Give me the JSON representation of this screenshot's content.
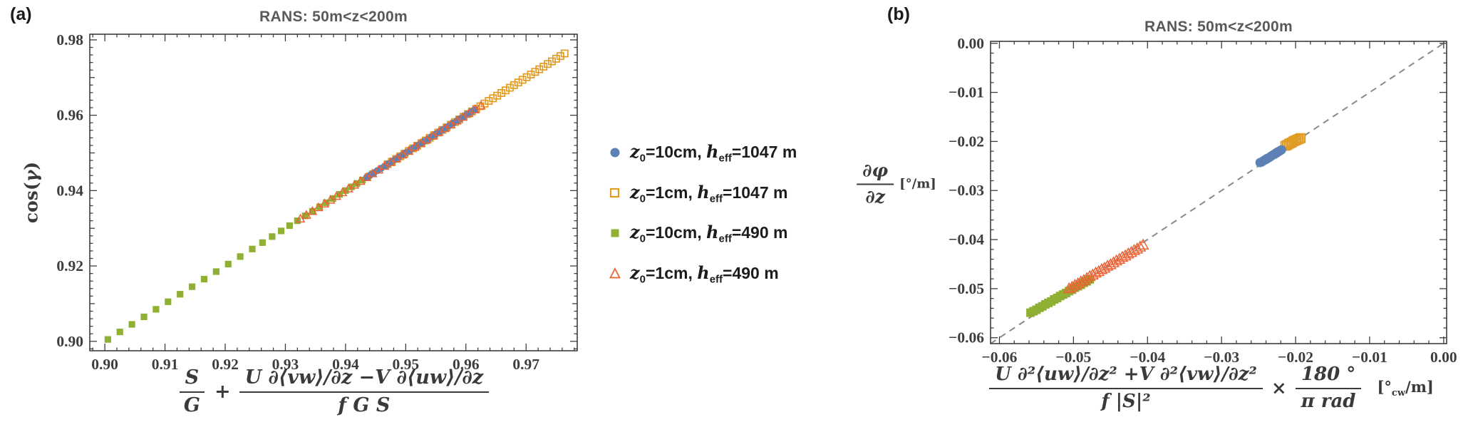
{
  "page": {
    "background": "#ffffff"
  },
  "panels": [
    {
      "tag": "(a)",
      "title": "RANS: 50m<z<200m",
      "ylabel": {
        "pre": "cos(",
        "gamma": "γ",
        "post": ")"
      },
      "xlabel": {
        "f1n": "S",
        "f1d": "G",
        "plus": "+",
        "f2n": "U ∂⟨vw⟩/∂z −V ∂⟨uw⟩/∂z",
        "f2d": "f G S"
      }
    },
    {
      "tag": "(b)",
      "title": "RANS: 50m<z<200m",
      "ylabel": {
        "num": "∂φ",
        "den": "∂z",
        "unit": "[°/m]"
      },
      "xlabel": {
        "f1n": "U ∂²⟨uw⟩/∂z² +V ∂²⟨vw⟩/∂z²",
        "f1d": "f |S|²",
        "times": "×",
        "f2n": "180 °",
        "f2d": "π rad",
        "unit_pre": "[°",
        "unit_sub": "cw",
        "unit_post": "/m]"
      }
    }
  ],
  "legend": {
    "entries": [
      {
        "var1": "z",
        "sub1": "0",
        "mid": "=10cm, ",
        "var2": "h",
        "sub2": "eff",
        "tail": "=1047 m",
        "marker": "circle-filled",
        "color": "#5E81B5"
      },
      {
        "var1": "z",
        "sub1": "0",
        "mid": "=1cm, ",
        "var2": "h",
        "sub2": "eff",
        "tail": "=1047 m",
        "marker": "square-open",
        "color": "#E19C24"
      },
      {
        "var1": "z",
        "sub1": "0",
        "mid": "=10cm, ",
        "var2": "h",
        "sub2": "eff",
        "tail": "=490 m",
        "marker": "square-filled",
        "color": "#8FB032"
      },
      {
        "var1": "z",
        "sub1": "0",
        "mid": "=1cm, ",
        "var2": "h",
        "sub2": "eff",
        "tail": "=490 m",
        "marker": "triangle-open",
        "color": "#EB6235"
      }
    ]
  },
  "chart_data": [
    {
      "type": "scatter",
      "title": "RANS: 50m<z<200m",
      "xlabel": "S/G + (U ∂⟨vw⟩/∂z − V ∂⟨uw⟩/∂z)/(f G S)",
      "ylabel": "cos(γ)",
      "xlim": [
        0.8975,
        0.9785
      ],
      "ylim": [
        0.8975,
        0.9815
      ],
      "grid": false,
      "legend_position": "outside-right",
      "xticks": {
        "values": [
          0.9,
          0.91,
          0.92,
          0.93,
          0.94,
          0.95,
          0.96,
          0.97
        ],
        "labels": [
          "0.90",
          "0.91",
          "0.92",
          "0.93",
          "0.94",
          "0.95",
          "0.96",
          "0.97"
        ]
      },
      "yticks": {
        "values": [
          0.9,
          0.92,
          0.94,
          0.96,
          0.98
        ],
        "labels": [
          "0.90",
          "0.92",
          "0.94",
          "0.96",
          "0.98"
        ]
      },
      "y_medium": [
        0.91,
        0.93,
        0.95,
        0.97
      ],
      "x_medium": [],
      "minor": 0.002,
      "marker_scale": 1,
      "draw_order": [
        1,
        2,
        0,
        3
      ],
      "series": [
        {
          "name": "z0=10cm, heff=1047m",
          "marker": "circle",
          "filled": true,
          "color": "#5E81B5",
          "x": [
            0.9435,
            0.9441,
            0.9447,
            0.9453,
            0.9459,
            0.9465,
            0.9471,
            0.9477,
            0.9483,
            0.9489,
            0.9495,
            0.9501,
            0.9507,
            0.9513,
            0.9519,
            0.9525,
            0.9531,
            0.9537,
            0.9543,
            0.9549,
            0.9555,
            0.9561,
            0.9567,
            0.9573,
            0.9579,
            0.9585,
            0.9591,
            0.9597,
            0.9603,
            0.9609,
            0.9615
          ],
          "y": [
            0.9435,
            0.9441,
            0.9447,
            0.9453,
            0.9459,
            0.9465,
            0.9471,
            0.9477,
            0.9483,
            0.9489,
            0.9495,
            0.9501,
            0.9507,
            0.9513,
            0.9519,
            0.9525,
            0.9531,
            0.9537,
            0.9543,
            0.9549,
            0.9555,
            0.9561,
            0.9567,
            0.9573,
            0.9579,
            0.9585,
            0.9591,
            0.9597,
            0.9603,
            0.9609,
            0.9615
          ]
        },
        {
          "name": "z0=1cm, heff=1047m",
          "marker": "square",
          "filled": false,
          "color": "#E19C24",
          "x": [
            0.947,
            0.9477,
            0.9484,
            0.9491,
            0.9498,
            0.9505,
            0.9512,
            0.9519,
            0.9526,
            0.9533,
            0.954,
            0.9547,
            0.9554,
            0.9561,
            0.9568,
            0.9575,
            0.9582,
            0.9589,
            0.9596,
            0.9603,
            0.961,
            0.9617,
            0.9624,
            0.9631,
            0.9638,
            0.9645,
            0.9652,
            0.9659,
            0.9666,
            0.9673,
            0.968,
            0.9687,
            0.9694,
            0.9701,
            0.9708,
            0.9715,
            0.9722,
            0.9729,
            0.9736,
            0.9743,
            0.975,
            0.9757,
            0.9764
          ],
          "y": [
            0.947,
            0.9477,
            0.9484,
            0.9491,
            0.9498,
            0.9505,
            0.9512,
            0.9519,
            0.9526,
            0.9533,
            0.954,
            0.9547,
            0.9554,
            0.9561,
            0.9568,
            0.9575,
            0.9582,
            0.9589,
            0.9596,
            0.9603,
            0.961,
            0.9617,
            0.9624,
            0.9631,
            0.9638,
            0.9645,
            0.9652,
            0.9659,
            0.9666,
            0.9673,
            0.968,
            0.9687,
            0.9694,
            0.9701,
            0.9708,
            0.9715,
            0.9722,
            0.9729,
            0.9736,
            0.9743,
            0.975,
            0.9757,
            0.9764
          ]
        },
        {
          "name": "z0=10cm, heff=490m",
          "marker": "square",
          "filled": true,
          "color": "#8FB032",
          "x": [
            0.9005,
            0.9025,
            0.9045,
            0.9065,
            0.9085,
            0.9105,
            0.9125,
            0.9145,
            0.9165,
            0.9185,
            0.9205,
            0.9225,
            0.9245,
            0.9262,
            0.9278,
            0.9293,
            0.9307,
            0.932,
            0.9333,
            0.9345,
            0.9357,
            0.9368,
            0.9379,
            0.939,
            0.94,
            0.941,
            0.9419,
            0.9428,
            0.9437,
            0.9445
          ],
          "y": [
            0.9005,
            0.9025,
            0.9045,
            0.9065,
            0.9085,
            0.9105,
            0.9125,
            0.9145,
            0.9165,
            0.9185,
            0.9205,
            0.9225,
            0.9245,
            0.9262,
            0.9278,
            0.9293,
            0.9307,
            0.932,
            0.9333,
            0.9345,
            0.9357,
            0.9368,
            0.9379,
            0.939,
            0.94,
            0.941,
            0.9419,
            0.9428,
            0.9437,
            0.9445
          ]
        },
        {
          "name": "z0=1cm, heff=490m",
          "marker": "triangle",
          "filled": false,
          "color": "#EB6235",
          "x": [
            0.9325,
            0.9335,
            0.9345,
            0.9355,
            0.9365,
            0.9375,
            0.9385,
            0.9395,
            0.9405,
            0.9415,
            0.9425,
            0.9435,
            0.9445,
            0.9455,
            0.9465,
            0.9475,
            0.9485,
            0.9495,
            0.9505,
            0.9515,
            0.9525,
            0.9535,
            0.9545,
            0.9555,
            0.9565,
            0.9575,
            0.9585,
            0.9595,
            0.9605,
            0.9615,
            0.9625
          ],
          "y": [
            0.9325,
            0.9335,
            0.9345,
            0.9355,
            0.9365,
            0.9375,
            0.9385,
            0.9395,
            0.9405,
            0.9415,
            0.9425,
            0.9435,
            0.9445,
            0.9455,
            0.9465,
            0.9475,
            0.9485,
            0.9495,
            0.9505,
            0.9515,
            0.9525,
            0.9535,
            0.9545,
            0.9555,
            0.9565,
            0.9575,
            0.9585,
            0.9595,
            0.9605,
            0.9615,
            0.9625
          ]
        }
      ]
    },
    {
      "type": "scatter",
      "title": "RANS: 50m<z<200m",
      "xlabel": "(U ∂²⟨uw⟩/∂z² + V ∂²⟨vw⟩/∂z²)/(f |S|²) × 180°/(π rad) [°cw/m]",
      "ylabel": "∂φ/∂z [°/m]",
      "xlim": [
        -0.0612,
        0.0004
      ],
      "ylim": [
        -0.0612,
        0.0004
      ],
      "grid": false,
      "legend_position": "none",
      "identity_line": {
        "style": "dashed",
        "color": "#898989",
        "width": 2
      },
      "xticks": {
        "values": [
          -0.06,
          -0.05,
          -0.04,
          -0.03,
          -0.02,
          -0.01,
          0.0
        ],
        "labels": [
          "−0.06",
          "−0.05",
          "−0.04",
          "−0.03",
          "−0.02",
          "−0.01",
          "0.00"
        ]
      },
      "yticks": {
        "values": [
          -0.06,
          -0.05,
          -0.04,
          -0.03,
          -0.02,
          -0.01,
          0.0
        ],
        "labels": [
          "−0.06",
          "−0.05",
          "−0.04",
          "−0.03",
          "−0.02",
          "−0.01",
          "0.00"
        ]
      },
      "y_medium": [],
      "x_medium": [],
      "minor": 0.002,
      "marker_scale": 1.3,
      "draw_order": [
        1,
        2,
        0,
        3
      ],
      "series": [
        {
          "name": "z0=10cm, heff=1047m",
          "marker": "circle",
          "filled": true,
          "color": "#5E81B5",
          "x": [
            -0.0248,
            -0.0246,
            -0.0245,
            -0.0243,
            -0.0242,
            -0.024,
            -0.0239,
            -0.0237,
            -0.0236,
            -0.0234,
            -0.0233,
            -0.0231,
            -0.023,
            -0.0228,
            -0.0227,
            -0.0225,
            -0.0224,
            -0.0222,
            -0.0221,
            -0.0219
          ],
          "y": [
            -0.0243,
            -0.0242,
            -0.0241,
            -0.0239,
            -0.0238,
            -0.0237,
            -0.0235,
            -0.0234,
            -0.0233,
            -0.0231,
            -0.023,
            -0.0228,
            -0.0227,
            -0.0226,
            -0.0224,
            -0.0223,
            -0.0221,
            -0.022,
            -0.0219,
            -0.0217
          ]
        },
        {
          "name": "z0=1cm, heff=1047m",
          "marker": "square",
          "filled": false,
          "color": "#E19C24",
          "x": [
            -0.0214,
            -0.0212,
            -0.0211,
            -0.0209,
            -0.0208,
            -0.0206,
            -0.0205,
            -0.0203,
            -0.0202,
            -0.02,
            -0.0199,
            -0.0197,
            -0.0196,
            -0.0194,
            -0.0193
          ],
          "y": [
            -0.0209,
            -0.0208,
            -0.0207,
            -0.0205,
            -0.0204,
            -0.0203,
            -0.0202,
            -0.02,
            -0.0199,
            -0.0198,
            -0.0197,
            -0.0196,
            -0.0195,
            -0.0194,
            -0.0193
          ]
        },
        {
          "name": "z0=10cm, heff=490m",
          "marker": "square",
          "filled": true,
          "color": "#8FB032",
          "x": [
            -0.0558,
            -0.0554,
            -0.055,
            -0.0546,
            -0.0542,
            -0.0538,
            -0.0534,
            -0.053,
            -0.0526,
            -0.0522,
            -0.0518,
            -0.0514,
            -0.051,
            -0.0506,
            -0.0502,
            -0.0498,
            -0.0494,
            -0.049,
            -0.0486,
            -0.0482,
            -0.0478
          ],
          "y": [
            -0.0549,
            -0.0546,
            -0.0543,
            -0.0539,
            -0.0536,
            -0.0532,
            -0.0529,
            -0.0526,
            -0.0522,
            -0.0519,
            -0.0515,
            -0.0512,
            -0.0509,
            -0.0505,
            -0.0502,
            -0.0498,
            -0.0495,
            -0.0492,
            -0.0488,
            -0.0485,
            -0.0481
          ]
        },
        {
          "name": "z0=1cm, heff=490m",
          "marker": "triangle",
          "filled": false,
          "color": "#EB6235",
          "x": [
            -0.0506,
            -0.0502,
            -0.0498,
            -0.0494,
            -0.049,
            -0.0486,
            -0.0482,
            -0.0478,
            -0.0474,
            -0.047,
            -0.0466,
            -0.0462,
            -0.0458,
            -0.0454,
            -0.045,
            -0.0446,
            -0.0442,
            -0.0438,
            -0.0434,
            -0.043,
            -0.0426,
            -0.0422,
            -0.0418,
            -0.0414,
            -0.041,
            -0.0406
          ],
          "y": [
            -0.05,
            -0.0497,
            -0.0493,
            -0.049,
            -0.0486,
            -0.0483,
            -0.0479,
            -0.0475,
            -0.0472,
            -0.0468,
            -0.0465,
            -0.0461,
            -0.0458,
            -0.0454,
            -0.0451,
            -0.0447,
            -0.0443,
            -0.044,
            -0.0436,
            -0.0433,
            -0.0429,
            -0.0426,
            -0.0422,
            -0.0419,
            -0.0415,
            -0.0411
          ]
        }
      ]
    }
  ]
}
